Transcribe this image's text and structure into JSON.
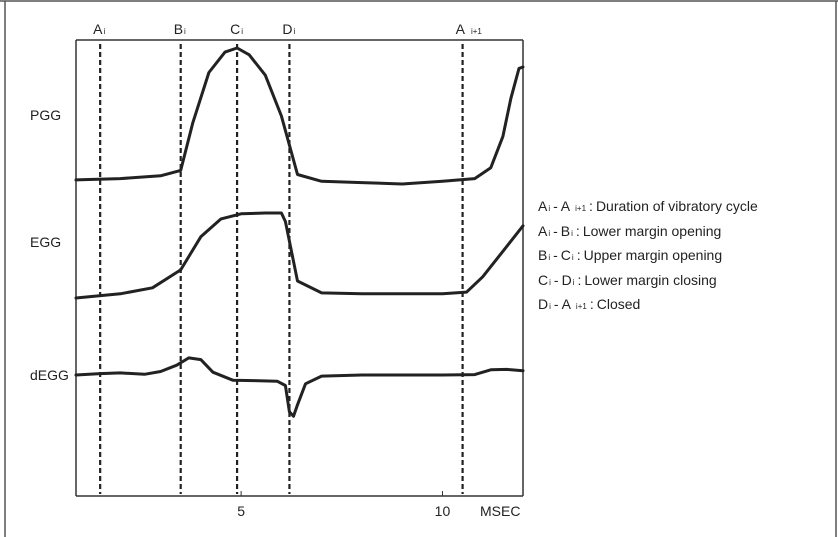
{
  "chart_data": {
    "type": "line",
    "xlabel": "MSEC",
    "x_ticks": [
      {
        "value": 5,
        "label": "5"
      },
      {
        "value": 10,
        "label": "10"
      }
    ],
    "xlim": [
      0.9,
      12.0
    ],
    "events": [
      {
        "id": "A",
        "sub": "i",
        "x": 1.5
      },
      {
        "id": "B",
        "sub": "i",
        "x": 3.5
      },
      {
        "id": "C",
        "sub": "i",
        "x": 4.9
      },
      {
        "id": "D",
        "sub": "i",
        "x": 6.2
      },
      {
        "id": "A",
        "sub": "i+1",
        "x": 10.5
      }
    ],
    "series": [
      {
        "name": "PGG",
        "x": [
          0.9,
          2.0,
          3.0,
          3.5,
          3.8,
          4.2,
          4.6,
          4.9,
          5.2,
          5.6,
          6.0,
          6.4,
          7.0,
          8.0,
          9.0,
          10.0,
          10.8,
          11.2,
          11.5,
          11.7,
          11.9,
          12.0
        ],
        "y": [
          0.03,
          0.04,
          0.06,
          0.1,
          0.45,
          0.82,
          0.97,
          1.0,
          0.95,
          0.8,
          0.5,
          0.07,
          0.02,
          0.01,
          0.0,
          0.02,
          0.04,
          0.12,
          0.35,
          0.63,
          0.85,
          0.86
        ]
      },
      {
        "name": "EGG",
        "x": [
          0.9,
          2.0,
          2.8,
          3.5,
          4.0,
          4.5,
          5.0,
          5.6,
          6.0,
          6.1,
          6.4,
          7.0,
          8.0,
          9.0,
          10.0,
          10.6,
          11.0,
          11.5,
          12.0
        ],
        "y": [
          0.0,
          0.05,
          0.12,
          0.33,
          0.72,
          0.93,
          0.99,
          1.0,
          1.0,
          0.9,
          0.2,
          0.06,
          0.05,
          0.05,
          0.05,
          0.07,
          0.25,
          0.55,
          0.85
        ]
      },
      {
        "name": "dEGG",
        "x": [
          0.9,
          1.5,
          2.0,
          2.6,
          3.0,
          3.4,
          3.7,
          4.0,
          4.3,
          4.8,
          5.3,
          5.9,
          6.1,
          6.2,
          6.3,
          6.4,
          6.6,
          7.0,
          8.0,
          9.0,
          10.0,
          10.8,
          11.2,
          11.6,
          12.0
        ],
        "y": [
          0.0,
          0.04,
          0.06,
          0.02,
          0.1,
          0.28,
          0.49,
          0.44,
          0.08,
          -0.15,
          -0.16,
          -0.18,
          -0.3,
          -1.05,
          -1.18,
          -0.85,
          -0.25,
          -0.03,
          0.0,
          0.0,
          0.0,
          0.01,
          0.15,
          0.16,
          0.12
        ]
      }
    ]
  },
  "legend": [
    {
      "from": {
        "id": "A",
        "sub": "i"
      },
      "to": {
        "id": "A",
        "sub": "i+1"
      },
      "sep": ":",
      "description": "Duration of vibratory cycle"
    },
    {
      "from": {
        "id": "A",
        "sub": "i"
      },
      "to": {
        "id": "B",
        "sub": "i"
      },
      "sep": ":",
      "description": "Lower margin opening"
    },
    {
      "from": {
        "id": "B",
        "sub": "i"
      },
      "to": {
        "id": "C",
        "sub": "i"
      },
      "sep": ":",
      "description": "Upper margin opening"
    },
    {
      "from": {
        "id": "C",
        "sub": "i"
      },
      "to": {
        "id": "D",
        "sub": "i"
      },
      "sep": ":",
      "description": "Lower margin closing"
    },
    {
      "from": {
        "id": "D",
        "sub": "i"
      },
      "to": {
        "id": "A",
        "sub": "i+1"
      },
      "sep": ":",
      "description": "Closed"
    }
  ],
  "colors": {
    "line": "#222222",
    "frame": "#333333",
    "background": "#ffffff"
  }
}
